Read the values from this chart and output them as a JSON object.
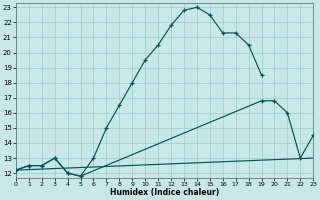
{
  "xlabel": "Humidex (Indice chaleur)",
  "bg_color": "#c8e8e8",
  "grid_color": "#a0cccc",
  "line_color": "#005555",
  "xlim": [
    0,
    23
  ],
  "ylim": [
    11.7,
    23.3
  ],
  "xticks": [
    0,
    1,
    2,
    3,
    4,
    5,
    6,
    7,
    8,
    9,
    10,
    11,
    12,
    13,
    14,
    15,
    16,
    17,
    18,
    19,
    20,
    21,
    22,
    23
  ],
  "yticks": [
    12,
    13,
    14,
    15,
    16,
    17,
    18,
    19,
    20,
    21,
    22,
    23
  ],
  "curve1_x": [
    0,
    1,
    2,
    3,
    4,
    5,
    6,
    7,
    8,
    9,
    10,
    11,
    12,
    13,
    14,
    15,
    16,
    17,
    18,
    19
  ],
  "curve1_y": [
    12.2,
    12.5,
    12.5,
    13.0,
    12.0,
    11.8,
    13.0,
    15.0,
    16.5,
    18.0,
    19.5,
    20.5,
    21.8,
    22.8,
    23.0,
    22.5,
    21.3,
    21.3,
    20.5,
    18.5
  ],
  "curve2_x": [
    0,
    1,
    2,
    3,
    4,
    5,
    19,
    20,
    21,
    22,
    23
  ],
  "curve2_y": [
    12.2,
    12.5,
    12.5,
    13.0,
    12.0,
    11.8,
    16.8,
    16.8,
    16.0,
    13.0,
    14.5
  ],
  "curve3_x": [
    0,
    23
  ],
  "curve3_y": [
    12.2,
    13.0
  ]
}
